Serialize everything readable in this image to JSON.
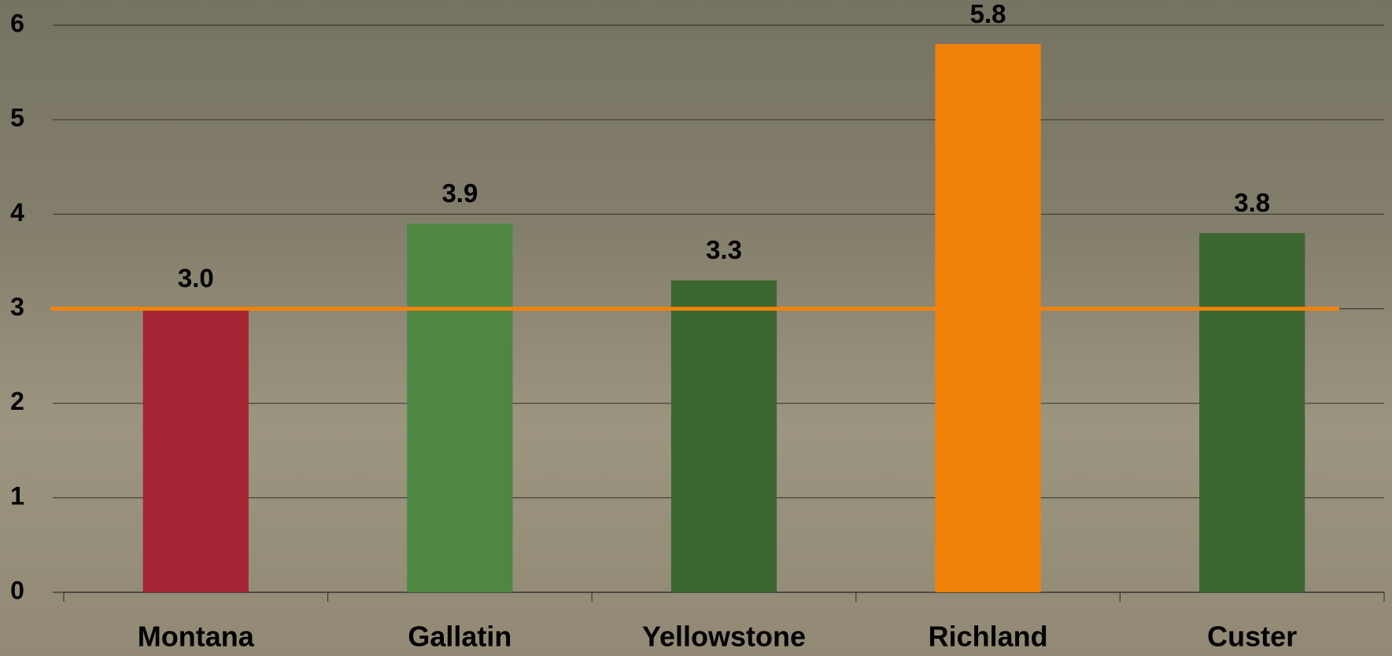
{
  "chart_data": {
    "type": "bar",
    "categories": [
      "Montana",
      "Gallatin",
      "Yellowstone",
      "Richland",
      "Custer"
    ],
    "values": [
      3.0,
      3.9,
      3.3,
      5.8,
      3.8
    ],
    "value_labels": [
      "3.0",
      "3.9",
      "3.3",
      "5.8",
      "3.8"
    ],
    "colors": [
      "#a52535",
      "#4e8742",
      "#3c6630",
      "#f0820a",
      "#3c6630"
    ],
    "reference_line": {
      "value": 3,
      "color": "#f0820a"
    },
    "ylim": [
      0,
      6
    ],
    "yticks": [
      0,
      1,
      2,
      3,
      4,
      5,
      6
    ],
    "grid": true
  }
}
